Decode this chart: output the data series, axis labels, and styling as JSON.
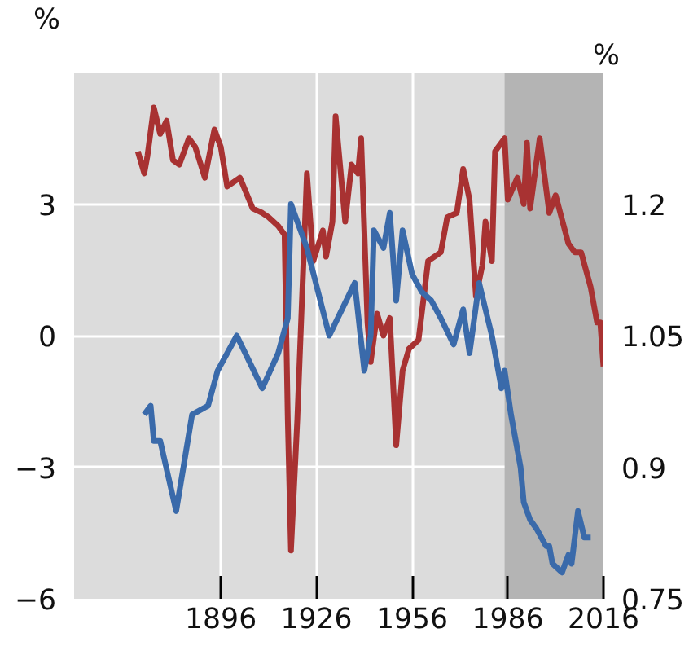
{
  "chart_data": {
    "type": "line",
    "ylabel": "%",
    "y2label": "%",
    "xlim": [
      1850,
      2016
    ],
    "ylim": [
      -6,
      6
    ],
    "y2lim": [
      0.75,
      1.35
    ],
    "xticks": [
      1896,
      1926,
      1956,
      1986,
      2016
    ],
    "yticks": [
      {
        "value": -6,
        "label": "−6"
      },
      {
        "value": -3,
        "label": "−3"
      },
      0,
      3
    ],
    "y2ticks": [
      0.75,
      0.9,
      1.05,
      1.2
    ],
    "grid": true,
    "line_style": "solid",
    "marker": "none",
    "bands": [
      {
        "axis": "x",
        "from": 1985,
        "to": 2016,
        "color": "#b4b4b4"
      }
    ],
    "series": [
      {
        "color": "#a83232",
        "x": [
          1870,
          1872,
          1873,
          1875,
          1877,
          1879,
          1881,
          1883,
          1886,
          1888,
          1891,
          1894,
          1896,
          1898,
          1902,
          1906,
          1909,
          1911,
          1914,
          1916,
          1917,
          1918,
          1920,
          1923,
          1925,
          1928,
          1929,
          1931,
          1932,
          1935,
          1937,
          1939,
          1940,
          1942,
          1943,
          1945,
          1947,
          1949,
          1951,
          1953,
          1955,
          1958,
          1961,
          1965,
          1967,
          1970,
          1972,
          1974,
          1976,
          1978,
          1979,
          1981,
          1982,
          1985,
          1986,
          1989,
          1991,
          1992,
          1993,
          1996,
          1999,
          2001,
          2005,
          2007,
          2009,
          2012,
          2014,
          2015,
          2016
        ],
        "values": [
          4.2,
          3.7,
          4.1,
          5.2,
          4.6,
          4.9,
          4.0,
          3.9,
          4.5,
          4.3,
          3.6,
          4.7,
          4.3,
          3.4,
          3.6,
          2.9,
          2.8,
          2.7,
          2.5,
          2.3,
          -1.9,
          -4.9,
          -1.9,
          3.7,
          1.7,
          2.4,
          1.8,
          2.6,
          5.0,
          2.6,
          3.9,
          3.7,
          4.5,
          0.3,
          -0.6,
          0.5,
          0.0,
          0.4,
          -2.5,
          -0.8,
          -0.3,
          -0.1,
          1.7,
          1.9,
          2.7,
          2.8,
          3.8,
          3.1,
          0.9,
          1.6,
          2.6,
          1.7,
          4.2,
          4.5,
          3.1,
          3.6,
          3.0,
          4.4,
          2.9,
          4.5,
          2.8,
          3.2,
          2.1,
          1.9,
          1.9,
          1.1,
          0.3,
          0.3,
          -0.7
        ]
      },
      {
        "color": "#3a6aaa",
        "axis": "y2",
        "x": [
          1872,
          1874,
          1875,
          1877,
          1882,
          1887,
          1892,
          1895,
          1901,
          1909,
          1914,
          1917,
          1918,
          1923,
          1930,
          1938,
          1941,
          1943,
          1944,
          1947,
          1949,
          1951,
          1953,
          1956,
          1959,
          1962,
          1965,
          1969,
          1972,
          1974,
          1977,
          1979,
          1981,
          1983,
          1984,
          1985,
          1987,
          1990,
          1991,
          1993,
          1995,
          1998,
          1999,
          2000,
          2003,
          2005,
          2006,
          2008,
          2010,
          2012
        ],
        "values": [
          0.96,
          0.97,
          0.93,
          0.93,
          0.85,
          0.96,
          0.97,
          1.01,
          1.05,
          0.99,
          1.03,
          1.07,
          1.2,
          1.15,
          1.05,
          1.11,
          1.01,
          1.05,
          1.17,
          1.15,
          1.19,
          1.09,
          1.17,
          1.12,
          1.1,
          1.09,
          1.07,
          1.04,
          1.08,
          1.03,
          1.11,
          1.08,
          1.05,
          1.01,
          0.99,
          1.01,
          0.96,
          0.9,
          0.86,
          0.84,
          0.83,
          0.81,
          0.81,
          0.79,
          0.78,
          0.8,
          0.79,
          0.85,
          0.82,
          0.82
        ]
      }
    ]
  }
}
